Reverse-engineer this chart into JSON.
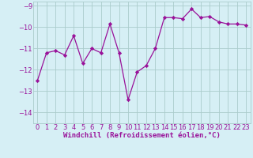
{
  "x": [
    0,
    1,
    2,
    3,
    4,
    5,
    6,
    7,
    8,
    9,
    10,
    11,
    12,
    13,
    14,
    15,
    16,
    17,
    18,
    19,
    20,
    21,
    22,
    23
  ],
  "y": [
    -12.5,
    -11.2,
    -11.1,
    -11.3,
    -10.4,
    -11.7,
    -11.0,
    -11.2,
    -9.85,
    -11.2,
    -13.4,
    -12.1,
    -11.8,
    -11.0,
    -9.55,
    -9.55,
    -9.6,
    -9.15,
    -9.55,
    -9.5,
    -9.75,
    -9.85,
    -9.85,
    -9.9
  ],
  "line_color": "#991199",
  "marker": "D",
  "marker_size": 2.2,
  "bg_color": "#d6eff5",
  "grid_color": "#aacccc",
  "xlabel": "Windchill (Refroidissement éolien,°C)",
  "xlabel_color": "#991199",
  "xlabel_fontsize": 6.5,
  "tick_color": "#991199",
  "tick_fontsize": 6,
  "ylim": [
    -14.5,
    -8.8
  ],
  "xlim": [
    -0.5,
    23.5
  ],
  "yticks": [
    -14,
    -13,
    -12,
    -11,
    -10,
    -9
  ],
  "xticks": [
    0,
    1,
    2,
    3,
    4,
    5,
    6,
    7,
    8,
    9,
    10,
    11,
    12,
    13,
    14,
    15,
    16,
    17,
    18,
    19,
    20,
    21,
    22,
    23
  ],
  "line_width": 0.9
}
